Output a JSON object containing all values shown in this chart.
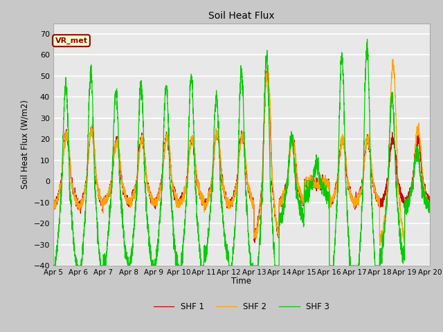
{
  "title": "Soil Heat Flux",
  "ylabel": "Soil Heat Flux (W/m2)",
  "xlabel": "Time",
  "ylim": [
    -40,
    75
  ],
  "annotation_text": "VR_met",
  "annotation_bg": "#FFFFCC",
  "annotation_border": "#8B0000",
  "annotation_text_color": "#8B0000",
  "series_colors": [
    "#CC0000",
    "#FFA500",
    "#00CC00"
  ],
  "series_labels": [
    "SHF 1",
    "SHF 2",
    "SHF 3"
  ],
  "fig_facecolor": "#C8C8C8",
  "ax_facecolor": "#E8E8E8",
  "x_ticks": [
    "Apr 5",
    "Apr 6",
    "Apr 7",
    "Apr 8",
    "Apr 9",
    "Apr 10",
    "Apr 11",
    "Apr 12",
    "Apr 13",
    "Apr 14",
    "Apr 15",
    "Apr 16",
    "Apr 17",
    "Apr 18",
    "Apr 19",
    "Apr 20"
  ],
  "n_points": 3600,
  "seed": 42
}
